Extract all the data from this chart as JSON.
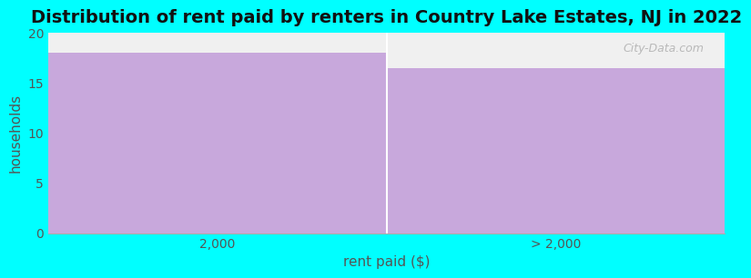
{
  "title": "Distribution of rent paid by renters in Country Lake Estates, NJ in 2022",
  "categories": [
    "2,000",
    "> 2,000"
  ],
  "values": [
    18,
    16.5
  ],
  "bar_color": "#C8A8DC",
  "background_color": "#00FFFF",
  "plot_bg_color": "#F0F0F0",
  "ylabel": "households",
  "xlabel": "rent paid ($)",
  "ylim": [
    0,
    20
  ],
  "yticks": [
    0,
    5,
    10,
    15,
    20
  ],
  "title_fontsize": 14,
  "axis_label_fontsize": 11,
  "tick_fontsize": 10,
  "watermark": "City-Data.com"
}
